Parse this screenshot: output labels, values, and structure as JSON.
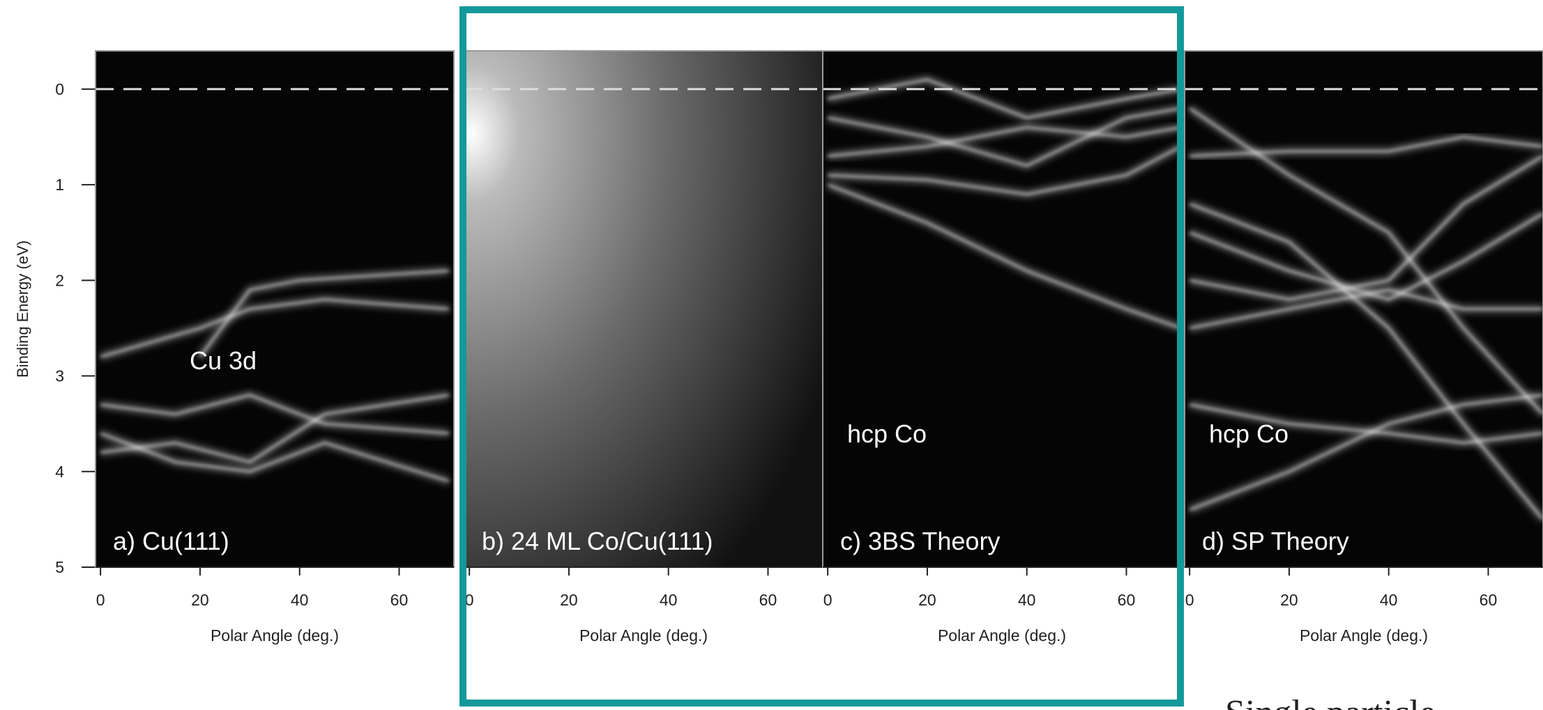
{
  "chart_data": [
    {
      "type": "image",
      "label": "a) Cu(111)",
      "annotation": "Cu 3d",
      "x_label": "Polar Angle (deg.)",
      "xlim": [
        -1,
        71
      ],
      "xticks": [
        0,
        20,
        40,
        60
      ],
      "y_label": "Binding Energy (eV)",
      "ylim": [
        -0.4,
        5
      ],
      "yticks": [
        0,
        1,
        2,
        3,
        4,
        5
      ],
      "hline": 0
    },
    {
      "type": "image",
      "label": "b) 24 ML Co/Cu(111)",
      "x_label": "Polar Angle (deg.)",
      "xlim": [
        -1,
        71
      ],
      "xticks": [
        0,
        20,
        40,
        60
      ]
    },
    {
      "type": "image",
      "label": "c)  3BS Theory",
      "annotation": "hcp Co",
      "x_label": "Polar Angle (deg.)",
      "xlim": [
        -1,
        71
      ],
      "xticks": [
        0,
        20,
        40,
        60
      ]
    },
    {
      "type": "image",
      "label": "d) SP Theory",
      "annotation": "hcp Co",
      "x_label": "Polar Angle (deg.)",
      "xlim": [
        -1,
        71
      ],
      "xticks": [
        0,
        20,
        40,
        60
      ]
    }
  ],
  "caption": "Single particle"
}
